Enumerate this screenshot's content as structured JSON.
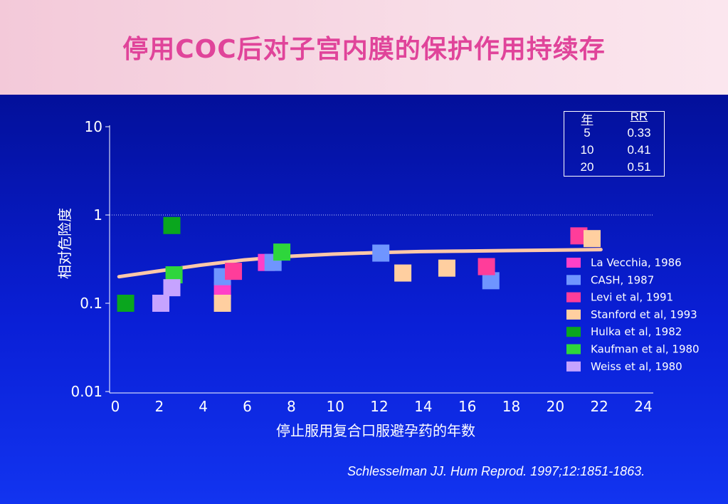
{
  "title": "停用COC后对子宫内膜的保护作用持续存",
  "citation": "Schlesselman JJ. Hum Reprod. 1997;12:1851-1863.",
  "rr_table": {
    "headers": [
      "年",
      "RR"
    ],
    "rows": [
      [
        "5",
        "0.33"
      ],
      [
        "10",
        "0.41"
      ],
      [
        "20",
        "0.51"
      ]
    ]
  },
  "chart_data": {
    "type": "scatter",
    "xlabel": "停止服用复合口服避孕药的年数",
    "ylabel": "相对危险度",
    "xlim": [
      0,
      24
    ],
    "ylim": [
      0.01,
      10
    ],
    "yscale": "log",
    "x_ticks": [
      "0",
      "2",
      "4",
      "6",
      "8",
      "10",
      "12",
      "14",
      "16",
      "18",
      "20",
      "22",
      "24"
    ],
    "y_ticks": [
      {
        "value": 10,
        "label": "10"
      },
      {
        "value": 1,
        "label": "1"
      },
      {
        "value": 0.1,
        "label": "0.1"
      },
      {
        "value": 0.01,
        "label": "0.01"
      }
    ],
    "reference_line": 1,
    "legend_position": "right",
    "series": [
      {
        "name": "La Vecchia, 1986",
        "color": "#ff40c8",
        "points": [
          [
            7,
            0.29
          ],
          [
            5,
            0.14
          ]
        ]
      },
      {
        "name": "CASH, 1987",
        "color": "#6f95ff",
        "points": [
          [
            5,
            0.2
          ],
          [
            7.3,
            0.29
          ],
          [
            12.2,
            0.37
          ],
          [
            17.2,
            0.18
          ]
        ]
      },
      {
        "name": "Levi et al, 1991",
        "color": "#ff3d9a",
        "points": [
          [
            5.5,
            0.23
          ],
          [
            17,
            0.26
          ],
          [
            21.2,
            0.58
          ]
        ]
      },
      {
        "name": "Stanford et al, 1993",
        "color": "#ffcfa0",
        "points": [
          [
            5,
            0.1
          ],
          [
            13.2,
            0.22
          ],
          [
            15.2,
            0.25
          ],
          [
            21.8,
            0.54
          ]
        ]
      },
      {
        "name": "Hulka et al, 1982",
        "color": "#0aa61e",
        "points": [
          [
            0.6,
            0.1
          ],
          [
            2.7,
            0.76
          ]
        ]
      },
      {
        "name": "Kaufman et al, 1980",
        "color": "#2ed63c",
        "points": [
          [
            2.8,
            0.21
          ],
          [
            7.7,
            0.38
          ]
        ]
      },
      {
        "name": "Weiss et al, 1980",
        "color": "#c6a3ff",
        "points": [
          [
            2.2,
            0.1
          ],
          [
            2.7,
            0.15
          ]
        ]
      }
    ],
    "trend": {
      "color": "#ffc8a8",
      "points": [
        [
          0.3,
          0.2
        ],
        [
          2,
          0.23
        ],
        [
          4,
          0.27
        ],
        [
          6,
          0.31
        ],
        [
          8,
          0.34
        ],
        [
          10,
          0.36
        ],
        [
          12,
          0.375
        ],
        [
          14,
          0.385
        ],
        [
          16,
          0.39
        ],
        [
          18,
          0.395
        ],
        [
          20,
          0.4
        ],
        [
          22.2,
          0.405
        ]
      ]
    }
  }
}
